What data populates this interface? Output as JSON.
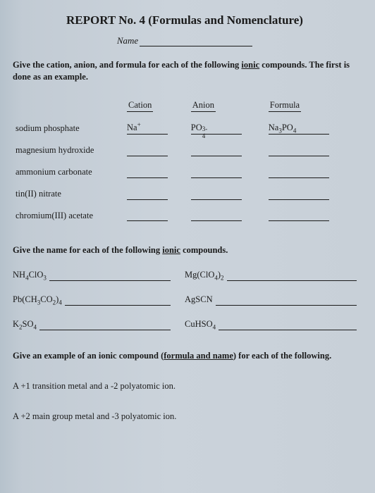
{
  "title": "REPORT No. 4 (Formulas and Nomenclature)",
  "name_label": "Name",
  "instr1_a": "Give the cation, anion, and formula for each of the following ",
  "instr1_u": "ionic",
  "instr1_b": " compounds. The first is done as an example.",
  "hdr": {
    "cation": "Cation",
    "anion": "Anion",
    "formula": "Formula"
  },
  "rows": [
    {
      "name": "sodium phosphate",
      "cation_html": "Na<sup>+</sup>",
      "anion_html": "PO<span class='supsub'><span class='sp'>3-</span><span class='sb'>4</span></span>",
      "formula_html": "Na<sub>3</sub>PO<sub>4</sub>"
    },
    {
      "name": "magnesium hydroxide",
      "cation_html": "",
      "anion_html": "",
      "formula_html": ""
    },
    {
      "name": "ammonium carbonate",
      "cation_html": "",
      "anion_html": "",
      "formula_html": ""
    },
    {
      "name": "tin(II) nitrate",
      "cation_html": "",
      "anion_html": "",
      "formula_html": ""
    },
    {
      "name": "chromium(III) acetate",
      "cation_html": "",
      "anion_html": "",
      "formula_html": ""
    }
  ],
  "instr2_a": "Give the name for each of the following ",
  "instr2_u": "ionic",
  "instr2_b": " compounds.",
  "pairs": [
    {
      "l_html": "NH<sub>4</sub>ClO<sub>3</sub>",
      "r_html": "Mg(ClO<sub>4</sub>)<sub>2</sub>"
    },
    {
      "l_html": "Pb(CH<sub>3</sub>CO<sub>2</sub>)<sub>4</sub>",
      "r_html": "AgSCN"
    },
    {
      "l_html": "K<sub>2</sub>SO<sub>4</sub>",
      "r_html": "CuHSO<sub>4</sub>"
    }
  ],
  "instr3_a": "Give an example of an ionic compound (",
  "instr3_u": "formula and name",
  "instr3_b": ") for each of the following.",
  "q1": "A +1 transition metal and a -2 polyatomic ion.",
  "q2": "A +2 main group metal and -3 polyatomic ion."
}
